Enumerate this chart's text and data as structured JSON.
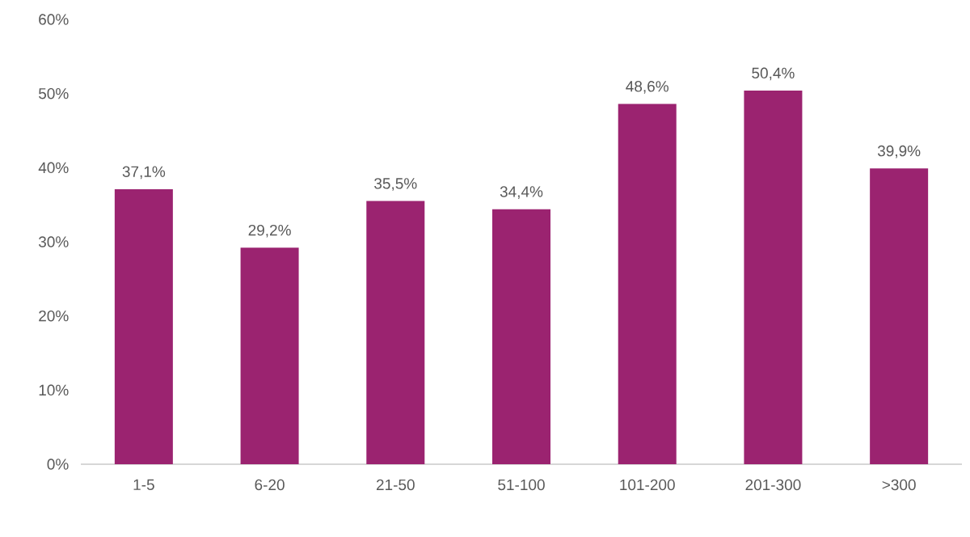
{
  "chart_data": {
    "type": "bar",
    "categories": [
      "1-5",
      "6-20",
      "21-50",
      "51-100",
      "101-200",
      "201-300",
      ">300"
    ],
    "values": [
      37.1,
      29.2,
      35.5,
      34.4,
      48.6,
      50.4,
      39.9
    ],
    "value_labels": [
      "37,1%",
      "29,2%",
      "35,5%",
      "34,4%",
      "48,6%",
      "50,4%",
      "39,9%"
    ],
    "color": "#9b2370",
    "ylim": [
      0,
      60
    ],
    "yticks": [
      {
        "value": 0,
        "label": "0%"
      },
      {
        "value": 10,
        "label": "10%"
      },
      {
        "value": 20,
        "label": "20%"
      },
      {
        "value": 30,
        "label": "30%"
      },
      {
        "value": 40,
        "label": "40%"
      },
      {
        "value": 50,
        "label": "50%"
      },
      {
        "value": 60,
        "label": "60%"
      }
    ]
  }
}
